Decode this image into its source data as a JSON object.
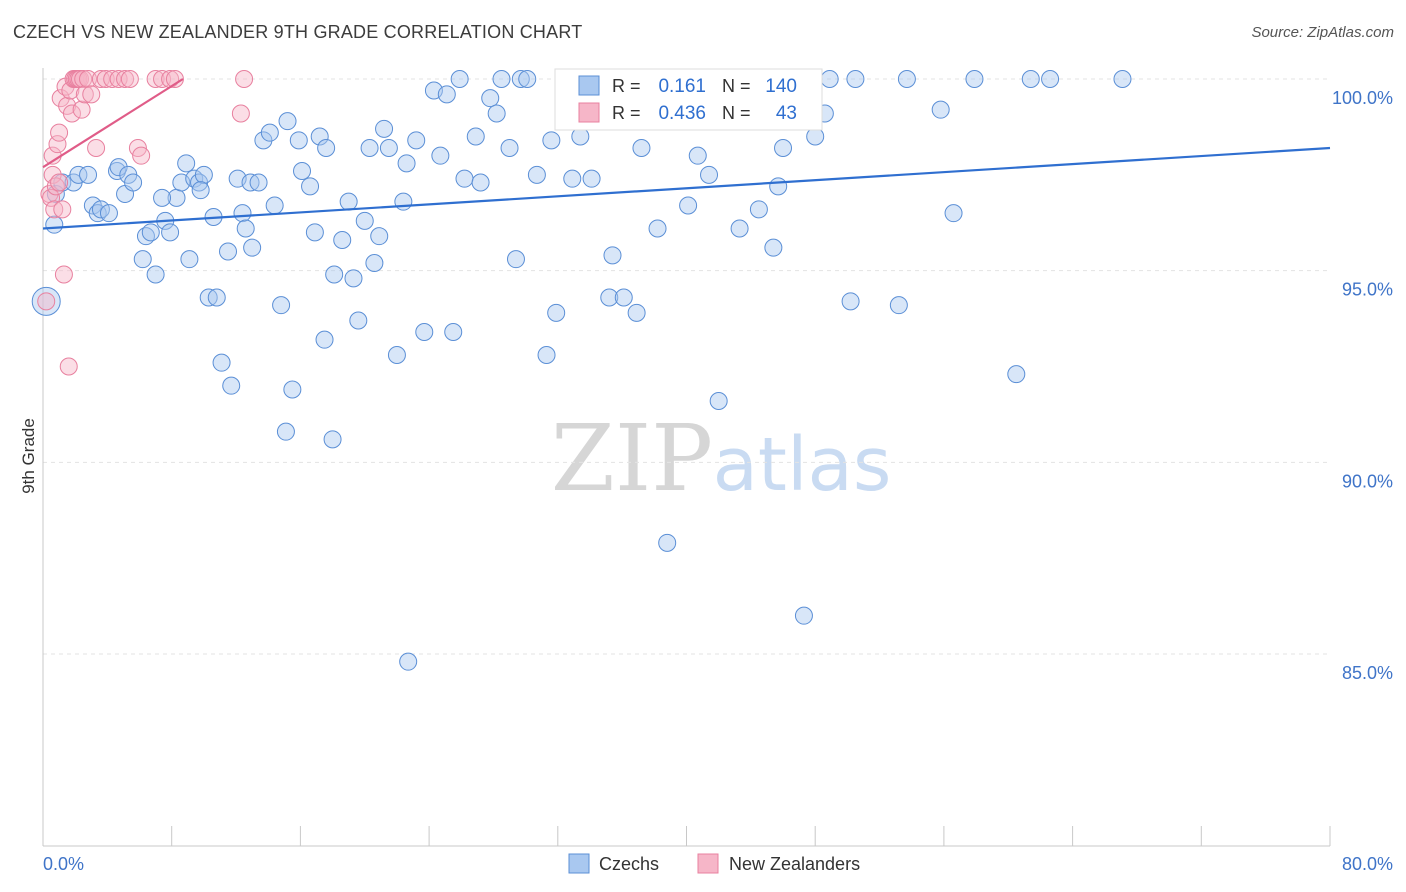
{
  "header": {
    "title": "CZECH VS NEW ZEALANDER 9TH GRADE CORRELATION CHART",
    "source": "Source: ZipAtlas.com"
  },
  "watermark": {
    "zip": "ZIP",
    "atlas": "atlas"
  },
  "stats": {
    "czechs": {
      "r_label": "R = ",
      "r_value": "0.161",
      "n_label": "N = ",
      "n_value": "140"
    },
    "new_zealanders": {
      "r_label": "R = ",
      "r_value": "0.436",
      "n_label": "N = ",
      "n_value": "43"
    }
  },
  "colors": {
    "blue_fill": "#a9c8f0",
    "blue_stroke": "#5b8fd6",
    "blue_line": "#2f6fd0",
    "pink_fill": "#f6b6c8",
    "pink_stroke": "#e8809f",
    "pink_line": "#e05c88",
    "tick_label": "#3f74c8",
    "grid": "#e3e3e3"
  },
  "chart_data": {
    "type": "scatter",
    "title": "CZECH VS NEW ZEALANDER 9TH GRADE CORRELATION CHART",
    "xlabel": "",
    "ylabel": "9th Grade",
    "xlim": [
      0,
      80
    ],
    "ylim": [
      80,
      100.8
    ],
    "x_tick_labels": [
      "0.0%",
      "80.0%"
    ],
    "y_ticks": [
      85,
      90,
      95,
      100
    ],
    "y_tick_labels": [
      "85.0%",
      "90.0%",
      "95.0%",
      "100.0%"
    ],
    "legend": [
      "Czechs",
      "New Zealanders"
    ],
    "series": [
      {
        "name": "Czechs",
        "r": 0.161,
        "n": 140,
        "trend": {
          "x": [
            0,
            80
          ],
          "y": [
            96.1,
            98.2
          ]
        },
        "points": [
          [
            0.2,
            94.2
          ],
          [
            0.7,
            96.2
          ],
          [
            0.8,
            97.0
          ],
          [
            1.2,
            97.3
          ],
          [
            1.9,
            97.3
          ],
          [
            2.2,
            97.5
          ],
          [
            2.8,
            97.5
          ],
          [
            3.1,
            96.7
          ],
          [
            3.4,
            96.5
          ],
          [
            3.6,
            96.6
          ],
          [
            4.1,
            96.5
          ],
          [
            4.6,
            97.6
          ],
          [
            4.7,
            97.7
          ],
          [
            5.1,
            97.0
          ],
          [
            5.3,
            97.5
          ],
          [
            5.6,
            97.3
          ],
          [
            6.2,
            95.3
          ],
          [
            6.4,
            95.9
          ],
          [
            6.7,
            96.0
          ],
          [
            7.0,
            94.9
          ],
          [
            7.6,
            96.3
          ],
          [
            7.9,
            96.0
          ],
          [
            8.3,
            96.9
          ],
          [
            8.6,
            97.3
          ],
          [
            8.9,
            97.8
          ],
          [
            9.1,
            95.3
          ],
          [
            9.4,
            97.4
          ],
          [
            9.7,
            97.3
          ],
          [
            10.0,
            97.5
          ],
          [
            10.3,
            94.3
          ],
          [
            10.6,
            96.4
          ],
          [
            10.8,
            94.3
          ],
          [
            11.1,
            92.6
          ],
          [
            11.5,
            95.5
          ],
          [
            11.7,
            92.0
          ],
          [
            12.1,
            97.4
          ],
          [
            12.4,
            96.5
          ],
          [
            12.6,
            96.1
          ],
          [
            12.9,
            97.3
          ],
          [
            13.4,
            97.3
          ],
          [
            13.7,
            98.4
          ],
          [
            14.1,
            98.6
          ],
          [
            14.4,
            96.7
          ],
          [
            14.8,
            94.1
          ],
          [
            15.2,
            98.9
          ],
          [
            15.5,
            91.9
          ],
          [
            15.9,
            98.4
          ],
          [
            16.1,
            97.6
          ],
          [
            16.6,
            97.2
          ],
          [
            16.9,
            96.0
          ],
          [
            17.2,
            98.5
          ],
          [
            17.6,
            98.2
          ],
          [
            18.1,
            94.9
          ],
          [
            18.6,
            95.8
          ],
          [
            19.0,
            96.8
          ],
          [
            19.3,
            94.8
          ],
          [
            19.6,
            93.7
          ],
          [
            20.0,
            96.3
          ],
          [
            20.3,
            98.2
          ],
          [
            20.6,
            95.2
          ],
          [
            20.9,
            95.9
          ],
          [
            21.2,
            98.7
          ],
          [
            21.5,
            98.2
          ],
          [
            22.0,
            92.8
          ],
          [
            22.6,
            97.8
          ],
          [
            22.4,
            96.8
          ],
          [
            23.2,
            98.4
          ],
          [
            23.7,
            93.4
          ],
          [
            24.3,
            99.7
          ],
          [
            24.7,
            98.0
          ],
          [
            25.1,
            99.6
          ],
          [
            25.5,
            93.4
          ],
          [
            25.9,
            100.0
          ],
          [
            26.2,
            97.4
          ],
          [
            26.9,
            98.5
          ],
          [
            27.2,
            97.3
          ],
          [
            27.8,
            99.5
          ],
          [
            28.2,
            99.1
          ],
          [
            28.5,
            100.0
          ],
          [
            29.0,
            98.2
          ],
          [
            29.4,
            95.3
          ],
          [
            29.7,
            100.0
          ],
          [
            30.1,
            100.0
          ],
          [
            30.7,
            97.5
          ],
          [
            31.3,
            92.8
          ],
          [
            31.6,
            98.4
          ],
          [
            31.9,
            93.9
          ],
          [
            32.4,
            100.0
          ],
          [
            32.9,
            97.4
          ],
          [
            33.4,
            98.5
          ],
          [
            34.1,
            97.4
          ],
          [
            34.9,
            99.0
          ],
          [
            35.2,
            94.3
          ],
          [
            35.4,
            95.4
          ],
          [
            36.1,
            94.3
          ],
          [
            36.6,
            100.0
          ],
          [
            36.9,
            93.9
          ],
          [
            37.2,
            98.2
          ],
          [
            37.9,
            99.2
          ],
          [
            38.2,
            96.1
          ],
          [
            38.8,
            87.9
          ],
          [
            39.4,
            100.0
          ],
          [
            40.1,
            96.7
          ],
          [
            40.7,
            98.0
          ],
          [
            41.0,
            100.0
          ],
          [
            41.4,
            97.5
          ],
          [
            42.0,
            100.0
          ],
          [
            42.5,
            100.0
          ],
          [
            42.9,
            100.0
          ],
          [
            43.3,
            96.1
          ],
          [
            43.6,
            100.0
          ],
          [
            44.2,
            100.0
          ],
          [
            44.5,
            96.6
          ],
          [
            45.4,
            95.6
          ],
          [
            45.7,
            97.2
          ],
          [
            46.0,
            98.2
          ],
          [
            46.5,
            100.0
          ],
          [
            47.3,
            86.0
          ],
          [
            48.0,
            98.5
          ],
          [
            48.6,
            99.1
          ],
          [
            48.9,
            100.0
          ],
          [
            50.2,
            94.2
          ],
          [
            50.5,
            100.0
          ],
          [
            53.2,
            94.1
          ],
          [
            53.7,
            100.0
          ],
          [
            55.8,
            99.2
          ],
          [
            56.6,
            96.5
          ],
          [
            57.9,
            100.0
          ],
          [
            60.5,
            92.3
          ],
          [
            61.4,
            100.0
          ],
          [
            62.6,
            100.0
          ],
          [
            67.1,
            100.0
          ],
          [
            15.1,
            90.8
          ],
          [
            18.0,
            90.6
          ],
          [
            22.7,
            84.8
          ],
          [
            42.0,
            91.6
          ],
          [
            13.0,
            95.6
          ],
          [
            7.4,
            96.9
          ],
          [
            9.8,
            97.1
          ],
          [
            17.5,
            93.2
          ]
        ]
      },
      {
        "name": "New Zealanders",
        "r": 0.436,
        "n": 43,
        "trend": {
          "x": [
            0,
            8.7
          ],
          "y": [
            97.7,
            100.0
          ]
        },
        "points": [
          [
            0.2,
            94.2
          ],
          [
            0.4,
            97.0
          ],
          [
            0.5,
            96.9
          ],
          [
            0.6,
            97.5
          ],
          [
            0.6,
            98.0
          ],
          [
            0.7,
            96.6
          ],
          [
            0.8,
            97.2
          ],
          [
            0.9,
            98.3
          ],
          [
            1.0,
            98.6
          ],
          [
            1.1,
            99.5
          ],
          [
            1.2,
            96.6
          ],
          [
            1.3,
            94.9
          ],
          [
            1.4,
            99.8
          ],
          [
            1.5,
            99.3
          ],
          [
            1.6,
            92.5
          ],
          [
            1.7,
            99.7
          ],
          [
            1.8,
            99.1
          ],
          [
            1.9,
            100.0
          ],
          [
            2.0,
            100.0
          ],
          [
            2.1,
            100.0
          ],
          [
            2.2,
            100.0
          ],
          [
            2.3,
            100.0
          ],
          [
            2.4,
            99.2
          ],
          [
            2.5,
            100.0
          ],
          [
            2.6,
            99.6
          ],
          [
            2.8,
            100.0
          ],
          [
            3.0,
            99.6
          ],
          [
            3.3,
            98.2
          ],
          [
            3.6,
            100.0
          ],
          [
            3.9,
            100.0
          ],
          [
            4.3,
            100.0
          ],
          [
            4.7,
            100.0
          ],
          [
            5.1,
            100.0
          ],
          [
            5.4,
            100.0
          ],
          [
            5.9,
            98.2
          ],
          [
            6.1,
            98.0
          ],
          [
            7.0,
            100.0
          ],
          [
            7.4,
            100.0
          ],
          [
            7.9,
            100.0
          ],
          [
            8.2,
            100.0
          ],
          [
            12.5,
            100.0
          ],
          [
            12.3,
            99.1
          ],
          [
            1.0,
            97.3
          ]
        ]
      }
    ]
  }
}
